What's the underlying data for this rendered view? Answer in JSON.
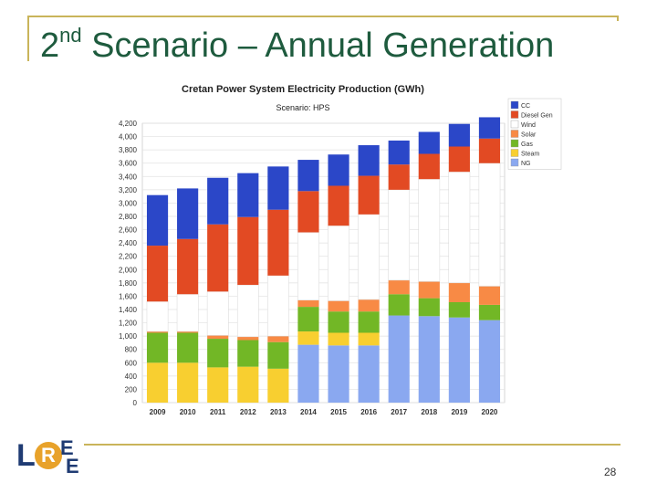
{
  "slide": {
    "title_prefix": "2",
    "title_sup": "nd",
    "title_rest": " Scenario – Annual Generation",
    "page_number": "28",
    "logo_letters": [
      "L",
      "R",
      "E",
      "E"
    ]
  },
  "chart_data": {
    "type": "bar",
    "stacked": true,
    "title": "Cretan Power System Electricity Production (GWh)",
    "subtitle": "Scenario: HPS",
    "xlabel": "",
    "ylabel": "",
    "ylim": [
      0,
      4200
    ],
    "yticks": [
      0,
      200,
      400,
      600,
      800,
      1000,
      1200,
      1400,
      1600,
      1800,
      2000,
      2200,
      2400,
      2600,
      2800,
      3000,
      3200,
      3400,
      3600,
      3800,
      4000,
      4200
    ],
    "ytick_labels": [
      "0",
      "200",
      "400",
      "600",
      "800",
      "1,000",
      "1,200",
      "1,400",
      "1,600",
      "1,800",
      "2,000",
      "2,200",
      "2,400",
      "2,600",
      "2,800",
      "3,000",
      "3,200",
      "3,400",
      "3,600",
      "3,800",
      "4,000",
      "4,200"
    ],
    "grid": true,
    "legend_position": "top-right",
    "categories": [
      "2009",
      "2010",
      "2011",
      "2012",
      "2013",
      "2014",
      "2015",
      "2016",
      "2017",
      "2018",
      "2019",
      "2020"
    ],
    "legend_order": [
      "CC",
      "Diesel Gen",
      "Wind",
      "Solar",
      "Gas",
      "Steam",
      "NG"
    ],
    "series": [
      {
        "name": "NG",
        "color": "#8aa8f0",
        "values": [
          0,
          0,
          0,
          0,
          0,
          870,
          860,
          860,
          1310,
          1300,
          1280,
          1240
        ]
      },
      {
        "name": "Steam",
        "color": "#f8cf30",
        "values": [
          600,
          600,
          530,
          540,
          510,
          200,
          190,
          190,
          0,
          0,
          0,
          0
        ]
      },
      {
        "name": "Gas",
        "color": "#72b726",
        "values": [
          450,
          450,
          430,
          400,
          400,
          370,
          320,
          320,
          320,
          270,
          230,
          230
        ]
      },
      {
        "name": "Solar",
        "color": "#f88a45",
        "values": [
          20,
          20,
          50,
          50,
          90,
          100,
          160,
          180,
          210,
          250,
          290,
          280
        ]
      },
      {
        "name": "Wind",
        "color": "#ffffff",
        "values": [
          450,
          560,
          660,
          780,
          910,
          1020,
          1130,
          1280,
          1360,
          1540,
          1670,
          1850
        ]
      },
      {
        "name": "Diesel Gen",
        "color": "#e24a23",
        "values": [
          840,
          830,
          1010,
          1020,
          990,
          620,
          600,
          580,
          380,
          380,
          380,
          370
        ]
      },
      {
        "name": "CC",
        "color": "#2b47c8",
        "values": [
          760,
          760,
          700,
          660,
          650,
          470,
          470,
          460,
          360,
          330,
          340,
          320
        ]
      }
    ]
  }
}
